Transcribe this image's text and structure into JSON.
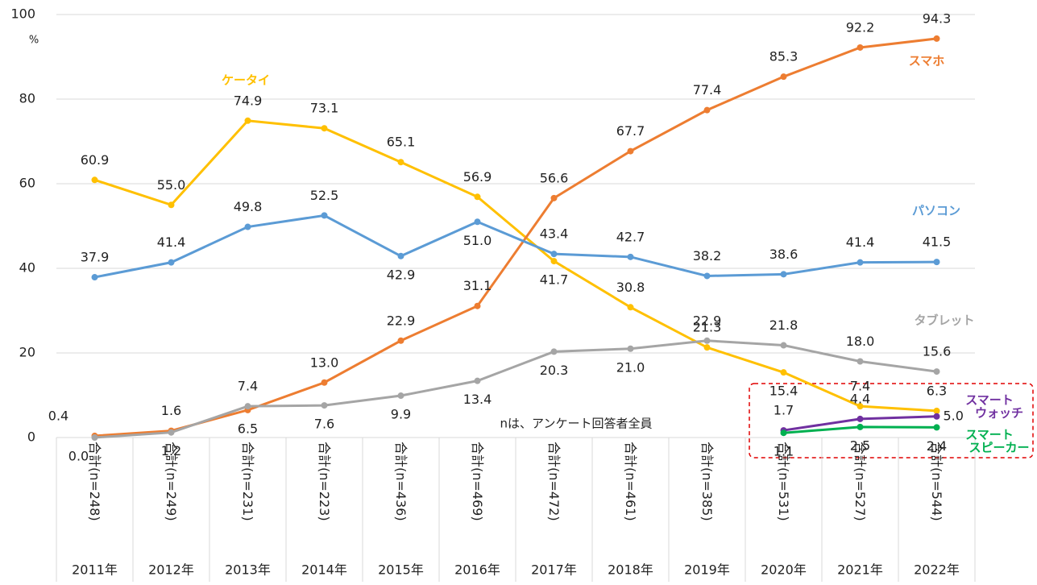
{
  "chart_data": {
    "type": "line",
    "y_unit": "%",
    "annotation": "nは、アンケート回答者全員",
    "categories": [
      "合計(n=248)",
      "合計(n=249)",
      "合計(n=231)",
      "合計(n=223)",
      "合計(n=436)",
      "合計(n=469)",
      "合計(n=472)",
      "合計(n=461)",
      "合計(n=385)",
      "合計(n=531)",
      "合計(n=527)",
      "合計(n=544)"
    ],
    "groups": [
      "2011年",
      "2012年",
      "2013年",
      "2014年",
      "2015年",
      "2016年",
      "2017年",
      "2018年",
      "2019年",
      "2020年",
      "2021年",
      "2022年"
    ],
    "ylim": [
      0,
      100
    ],
    "yticks": [
      0,
      20,
      40,
      60,
      80,
      100
    ],
    "grid": true,
    "series": [
      {
        "name": "ケータイ",
        "color": "#ffc000",
        "values": [
          60.9,
          55.0,
          74.9,
          73.1,
          65.1,
          56.9,
          41.7,
          30.8,
          21.3,
          15.4,
          7.4,
          6.3
        ],
        "value_labels": [
          "60.9",
          "55.0",
          "74.9",
          "73.1",
          "65.1",
          "56.9",
          "41.7",
          "30.8",
          "21.3",
          "15.4",
          "7.4",
          "6.3"
        ]
      },
      {
        "name": "スマホ",
        "color": "#ed7d31",
        "values": [
          0.4,
          1.6,
          6.5,
          13.0,
          22.9,
          31.1,
          56.6,
          67.7,
          77.4,
          85.3,
          92.2,
          94.3
        ],
        "value_labels": [
          "0.4",
          "1.6",
          "6.5",
          "13.0",
          "22.9",
          "31.1",
          "56.6",
          "67.7",
          "77.4",
          "85.3",
          "92.2",
          "94.3"
        ]
      },
      {
        "name": "パソコン",
        "color": "#5b9bd5",
        "values": [
          37.9,
          41.4,
          49.8,
          52.5,
          42.9,
          51.0,
          43.4,
          42.7,
          38.2,
          38.6,
          41.4,
          41.5
        ],
        "value_labels": [
          "37.9",
          "41.4",
          "49.8",
          "52.5",
          "42.9",
          "51.0",
          "43.4",
          "42.7",
          "38.2",
          "38.6",
          "41.4",
          "41.5"
        ]
      },
      {
        "name": "タブレット",
        "color": "#a5a5a5",
        "values": [
          0.0,
          1.2,
          7.4,
          7.6,
          9.9,
          13.4,
          20.3,
          21.0,
          22.9,
          21.8,
          18.0,
          15.6
        ],
        "value_labels": [
          "0.0",
          "1.2",
          "7.4",
          "7.6",
          "9.9",
          "13.4",
          "20.3",
          "21.0",
          "22.9",
          "21.8",
          "18.0",
          "15.6"
        ]
      },
      {
        "name": [
          "スマート",
          "ウォッチ"
        ],
        "color": "#7030a0",
        "values": [
          null,
          null,
          null,
          null,
          null,
          null,
          null,
          null,
          null,
          1.7,
          4.4,
          5.0
        ],
        "value_labels": [
          null,
          null,
          null,
          null,
          null,
          null,
          null,
          null,
          null,
          "1.7",
          "4.4",
          "5.0"
        ]
      },
      {
        "name": [
          "スマート",
          "スピーカー"
        ],
        "color": "#00b050",
        "values": [
          null,
          null,
          null,
          null,
          null,
          null,
          null,
          null,
          null,
          1.1,
          2.5,
          2.4
        ],
        "value_labels": [
          null,
          null,
          null,
          null,
          null,
          null,
          null,
          null,
          null,
          "1.1",
          "2.5",
          "2.4"
        ]
      }
    ]
  }
}
